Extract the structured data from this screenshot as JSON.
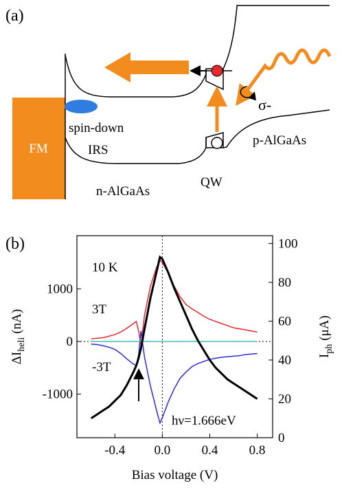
{
  "diagram": {
    "panel_label": "(a)",
    "labels": {
      "fm": "FM",
      "spin_down": "spin-down",
      "irs": "IRS",
      "n_side": "n-AlGaAs",
      "qw": "QW",
      "p_side": "p-AlGaAs",
      "sigma": "σ-"
    }
  },
  "chart_data": {
    "type": "line",
    "panel_label": "(b)",
    "xlabel": "Bias voltage (V)",
    "ylabel": [
      "ΔI",
      "heli",
      "(nA)"
    ],
    "y2label": [
      "I",
      "ph",
      "(μA)"
    ],
    "annotations": [
      "10 K",
      "3T",
      "-3T",
      "hν=1.666eV"
    ],
    "xlim": [
      -0.72,
      0.93
    ],
    "xticks": [
      -0.4,
      {
        "value": 0,
        "label": "0.0"
      },
      0.4,
      0.8
    ],
    "ylim": [
      -1830,
      2010
    ],
    "yticks": [
      -1000,
      0,
      1000
    ],
    "y2lim": [
      0,
      104
    ],
    "y2ticks": [
      0,
      20,
      40,
      60,
      80,
      100
    ],
    "x": [
      -0.6,
      -0.55,
      -0.5,
      -0.45,
      -0.4,
      -0.35,
      -0.3,
      -0.25,
      -0.22,
      -0.2,
      -0.18,
      -0.15,
      -0.1,
      -0.05,
      -0.02,
      0,
      0.05,
      0.1,
      0.15,
      0.2,
      0.25,
      0.3,
      0.35,
      0.4,
      0.45,
      0.5,
      0.55,
      0.6,
      0.65,
      0.7,
      0.75,
      0.8
    ],
    "series": [
      {
        "name": "3T",
        "color": "#e8262e",
        "values": [
          50,
          60,
          70,
          100,
          130,
          180,
          250,
          330,
          380,
          200,
          -80,
          500,
          1050,
          1400,
          1550,
          1500,
          1300,
          1050,
          850,
          700,
          620,
          550,
          480,
          420,
          380,
          340,
          300,
          260,
          240,
          220,
          200,
          180
        ]
      },
      {
        "name": "-3T",
        "color": "#2b2bd6",
        "values": [
          -50,
          -60,
          -80,
          -110,
          -150,
          -230,
          -330,
          -420,
          -460,
          -250,
          200,
          -300,
          -850,
          -1300,
          -1550,
          -1450,
          -1150,
          -900,
          -700,
          -580,
          -480,
          -420,
          -380,
          -340,
          -320,
          -300,
          -290,
          -280,
          -270,
          -250,
          -240,
          -230
        ]
      },
      {
        "color": "#3cc8b4",
        "values": [
          0,
          0,
          0,
          0,
          0,
          0,
          0,
          0,
          0,
          0,
          0,
          0,
          0,
          0,
          0,
          0,
          0,
          0,
          0,
          0,
          0,
          0,
          0,
          0,
          0,
          0,
          0,
          0,
          0,
          0,
          0,
          0
        ]
      },
      {
        "color": "#000000",
        "axis": "y2",
        "values": [
          10,
          12,
          14,
          16,
          19,
          22,
          27,
          33,
          37,
          41,
          46,
          56,
          72,
          85,
          93,
          92,
          85,
          77,
          70,
          63,
          56,
          50,
          45,
          40,
          36,
          33,
          30,
          28,
          26,
          24,
          22,
          20
        ]
      }
    ]
  }
}
